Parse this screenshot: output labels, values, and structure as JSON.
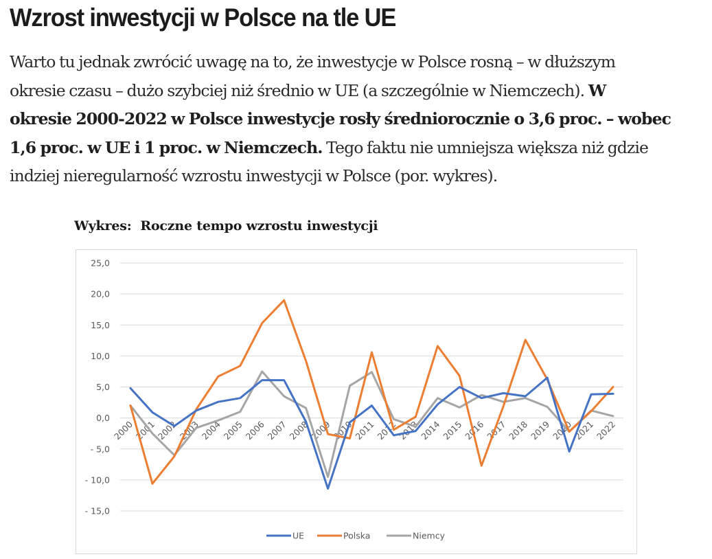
{
  "article": {
    "title": "Wzrost inwestycji w Polsce na tle UE",
    "paragraph": {
      "line1": "Warto tu jednak zwrócić uwagę na to, że inwestycje w Polsce rosną – w dłuższym",
      "line2_normal": "okresie czasu – dużo szybciej niż średnio w UE (a szczególnie w Niemczech). ",
      "line2_bold": "W",
      "line3_bold": "okresie 2000-2022 w Polsce inwestycje rosły średniorocznie o 3,6 proc. – wobec",
      "line4_bold": "1,6 proc. w UE i 1 proc. w Niemczech.",
      "line4_normal": " Tego faktu nie umniejsza większa niż gdzie",
      "line5": "indziej nieregularność wzrostu inwestycji w Polsce (por. wykres)."
    }
  },
  "chart_heading": "Wykres:  Roczne tempo wzrostu inwestycji",
  "chart_data": {
    "type": "line",
    "title": "Wykres:  Roczne tempo wzrostu inwestycji",
    "xlabel": "",
    "ylabel": "",
    "ylim": [
      -15,
      25
    ],
    "y_ticks": [
      25,
      20,
      15,
      10,
      5,
      0,
      -5,
      -10,
      -15
    ],
    "y_tick_labels": [
      "25,0",
      "20,0",
      "15,0",
      "10,0",
      "5,0",
      "0,0",
      "- 5,0",
      "- 10,0",
      "- 15,0"
    ],
    "grid": true,
    "legend_position": "bottom",
    "x": [
      "2000",
      "2001",
      "2002",
      "2003",
      "2004",
      "2005",
      "2006",
      "2007",
      "2008",
      "2009",
      "2010",
      "2011",
      "2012",
      "2013",
      "2014",
      "2015",
      "2016",
      "2017",
      "2018",
      "2019",
      "2020",
      "2021",
      "2022"
    ],
    "series": [
      {
        "name": "UE",
        "color": "#4472c4",
        "values": [
          4.8,
          0.9,
          -1.3,
          1.2,
          2.6,
          3.2,
          6.1,
          6.1,
          -0.6,
          -11.4,
          -0.7,
          2.0,
          -2.8,
          -2.1,
          2.2,
          5.0,
          3.2,
          4.0,
          3.5,
          6.5,
          -5.4,
          3.8,
          3.9
        ]
      },
      {
        "name": "Polska",
        "color": "#ed7d31",
        "values": [
          2.0,
          -10.6,
          -6.2,
          1.4,
          6.7,
          8.4,
          15.3,
          19.0,
          9.2,
          -2.6,
          -3.3,
          10.6,
          -1.9,
          0.2,
          11.6,
          6.8,
          -7.7,
          1.9,
          12.6,
          6.2,
          -2.2,
          1.1,
          5.0
        ]
      },
      {
        "name": "Niemcy",
        "color": "#a5a5a5",
        "values": [
          2.0,
          -2.5,
          -6.0,
          -1.6,
          -0.4,
          1.0,
          7.5,
          3.5,
          1.6,
          -9.5,
          5.2,
          7.4,
          -0.2,
          -1.4,
          3.2,
          1.7,
          3.7,
          2.6,
          3.2,
          1.8,
          -2.2,
          1.2,
          0.3
        ]
      }
    ]
  }
}
